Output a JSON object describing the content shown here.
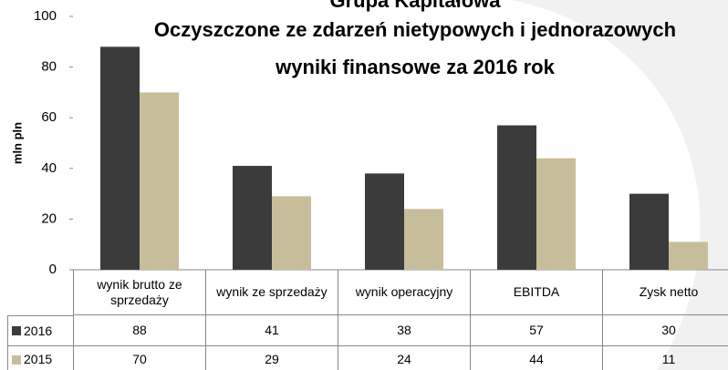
{
  "chart_data": {
    "type": "bar",
    "title": [
      "Grupa Kapitałowa",
      "Oczyszczone ze zdarzeń nietypowych i jednorazowych",
      "wyniki finansowe za 2016 rok"
    ],
    "y_label": "mln pln",
    "categories": [
      "wynik brutto ze sprzedaży",
      "wynik ze sprzedaży",
      "wynik operacyjny",
      "EBITDA",
      "Zysk netto"
    ],
    "series": [
      {
        "name": "2016",
        "color": "#3b3b3b",
        "values": [
          88,
          41,
          38,
          57,
          30
        ]
      },
      {
        "name": "2015",
        "color": "#c8bd9b",
        "values": [
          70,
          29,
          24,
          44,
          11
        ]
      }
    ],
    "ylim": [
      0,
      100
    ],
    "yticks": [
      0,
      20,
      40,
      60,
      80,
      100
    ]
  }
}
